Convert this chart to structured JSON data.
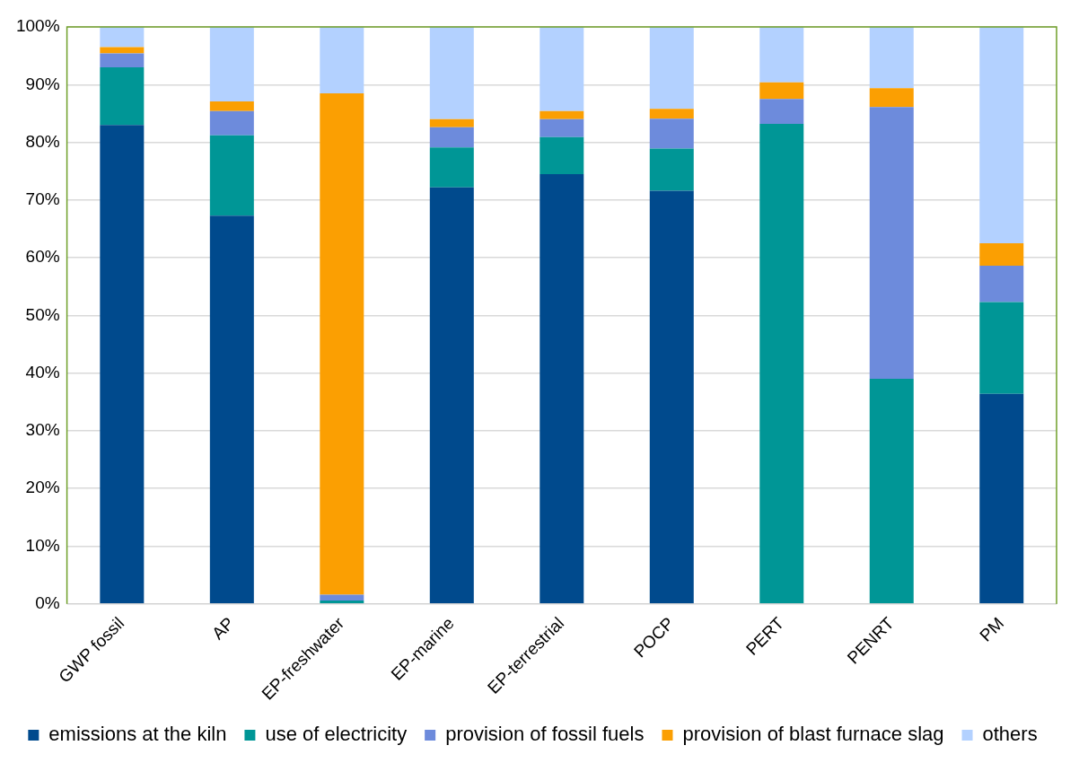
{
  "chart_data": {
    "type": "bar",
    "stacked": true,
    "categories": [
      "GWP fossil",
      "AP",
      "EP-freshwater",
      "EP-marine",
      "EP-terrestrial",
      "POCP",
      "PERT",
      "PENRT",
      "PM"
    ],
    "series": [
      {
        "name": "emissions at the kiln",
        "color": "#004a8d",
        "values": [
          83,
          67.3,
          0,
          72.2,
          74.5,
          71.6,
          0,
          0,
          36.4
        ]
      },
      {
        "name": "use of electricity",
        "color": "#009696",
        "values": [
          10,
          13.9,
          0.6,
          6.9,
          6.4,
          7.3,
          83.2,
          39.0,
          15.9
        ]
      },
      {
        "name": "provision of fossil fuels",
        "color": "#6d8bdc",
        "values": [
          2.4,
          4.2,
          1.0,
          3.5,
          3.1,
          5.2,
          4.3,
          47.1,
          6.3
        ]
      },
      {
        "name": "provision of blast furnace slag",
        "color": "#fb9f02",
        "values": [
          1.1,
          1.7,
          86.9,
          1.4,
          1.4,
          1.7,
          2.9,
          3.3,
          3.9
        ]
      },
      {
        "name": "others",
        "color": "#b3d1ff",
        "values": [
          3.5,
          12.9,
          11.5,
          16.0,
          14.6,
          14.2,
          9.6,
          10.6,
          37.5
        ]
      }
    ],
    "ylim": [
      0,
      100
    ],
    "yticks": [
      {
        "value": 0,
        "label": "0%"
      },
      {
        "value": 10,
        "label": "10%"
      },
      {
        "value": 20,
        "label": "20%"
      },
      {
        "value": 30,
        "label": "30%"
      },
      {
        "value": 40,
        "label": "40%"
      },
      {
        "value": 50,
        "label": "50%"
      },
      {
        "value": 60,
        "label": "60%"
      },
      {
        "value": 70,
        "label": "70%"
      },
      {
        "value": 80,
        "label": "80%"
      },
      {
        "value": 90,
        "label": "90%"
      },
      {
        "value": 100,
        "label": "100%"
      }
    ],
    "grid": "y",
    "legend": "bottom"
  }
}
